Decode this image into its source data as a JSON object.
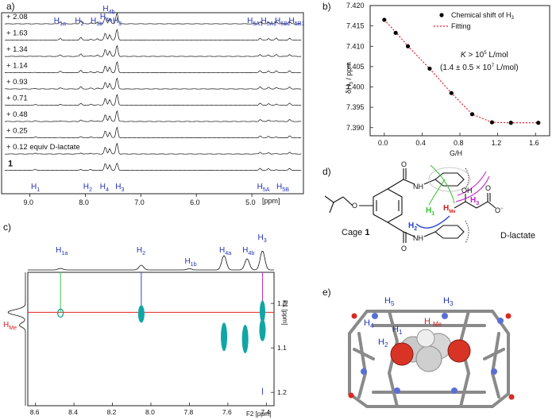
{
  "panel_a": {
    "label": "a)",
    "equiv_labels": [
      "+ 2.08",
      "+ 1.63",
      "+ 1.34",
      "+ 1.14",
      "+ 0.93",
      "+ 0.71",
      "+ 0.48",
      "+ 0.25",
      "+ 0.12 equiv D-lactate"
    ],
    "host_label": "1",
    "top_peaks": [
      "H1a",
      "H2",
      "H1b",
      "H4a",
      "H4b",
      "H3",
      "H5A1",
      "H5A2",
      "H5B2",
      "H5B1"
    ],
    "bottom_peaks": [
      "H1",
      "H2",
      "H4",
      "H3",
      "H5A",
      "H5B"
    ],
    "x_ticks": [
      "9.0",
      "8.0",
      "7.0",
      "6.0",
      "5.0"
    ],
    "x_unit": "[ppm]"
  },
  "panel_b": {
    "label": "b)",
    "legend_points": "Chemical shift of H3",
    "legend_fit": "Fitting",
    "annotation_line1": "K > 10^5 L/mol",
    "annotation_line2": "(1.4 ± 0.5 × 10^7 L/mol)",
    "xlabel": "G/H",
    "ylabel": "δH3 / ppm",
    "colors": {
      "points": "#000000",
      "fit": "#e8202a"
    }
  },
  "chart_data": {
    "type": "scatter",
    "x": [
      0.0,
      0.12,
      0.25,
      0.48,
      0.71,
      0.93,
      1.14,
      1.34,
      1.63
    ],
    "series": [
      {
        "name": "Chemical shift of H3",
        "values": [
          7.4165,
          7.4133,
          7.41,
          7.4045,
          7.3985,
          7.3933,
          7.3913,
          7.3912,
          7.3912
        ]
      },
      {
        "name": "Fitting",
        "values": [
          7.4165,
          7.4135,
          7.41,
          7.4045,
          7.3985,
          7.3933,
          7.3913,
          7.3912,
          7.3912
        ]
      }
    ],
    "xlabel": "G/H",
    "ylabel": "δH3 / ppm",
    "xlim": [
      -0.15,
      1.75
    ],
    "ylim": [
      7.388,
      7.42
    ],
    "x_ticks": [
      "0.0",
      "0.4",
      "0.8",
      "1.2",
      "1.6"
    ],
    "y_ticks": [
      "7.390",
      "7.395",
      "7.400",
      "7.405",
      "7.410",
      "7.415",
      "7.420"
    ]
  },
  "panel_c": {
    "label": "c)",
    "top_peaks": [
      "H1a",
      "H2",
      "H1b",
      "H4a",
      "H4b",
      "H3"
    ],
    "left_label": "H Me",
    "f1_label": "F1 [ppm]",
    "f2_label": "F2 [ppm]",
    "x_ticks": [
      "8.6",
      "8.4",
      "8.2",
      "8.0",
      "7.8",
      "7.6",
      "7.4"
    ],
    "y_ticks": [
      "1.0",
      "1.1",
      "1.2"
    ]
  },
  "panel_d": {
    "label": "d)",
    "cage_label": "Cage 1",
    "guest_label": "D-lactate",
    "atom_labels": [
      "O",
      "NH",
      "NH",
      "O",
      "O",
      "OH",
      "O",
      "O-"
    ],
    "proton_labels": [
      "H1",
      "H3",
      "H2",
      "HMe"
    ]
  },
  "panel_e": {
    "label": "e)",
    "proton_labels": [
      "H5",
      "H3",
      "H4",
      "H1",
      "H2",
      "H Me"
    ]
  }
}
